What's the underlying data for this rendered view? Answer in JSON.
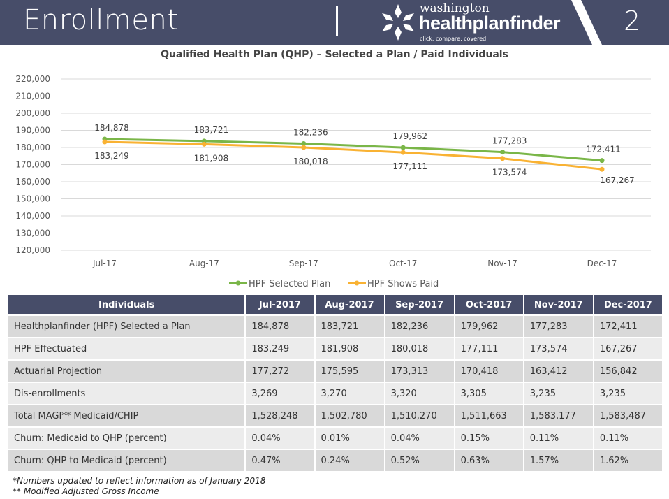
{
  "header": {
    "title": "Enrollment",
    "page_number": "2",
    "logo": {
      "line1": "washington",
      "line2": "healthplanfinder",
      "tagline": "click. compare. covered."
    }
  },
  "chart_data": {
    "type": "line",
    "title": "Qualified Health Plan (QHP) – Selected a Plan / Paid Individuals",
    "categories": [
      "Jul-17",
      "Aug-17",
      "Sep-17",
      "Oct-17",
      "Nov-17",
      "Dec-17"
    ],
    "ylim": [
      120000,
      220000
    ],
    "yticks": [
      "120,000",
      "130,000",
      "140,000",
      "150,000",
      "160,000",
      "170,000",
      "180,000",
      "190,000",
      "200,000",
      "210,000",
      "220,000"
    ],
    "grid": true,
    "legend": "bottom",
    "series": [
      {
        "name": "HPF Selected Plan",
        "color": "#7ab648",
        "values": [
          184878,
          183721,
          182236,
          179962,
          177283,
          172411
        ],
        "labels": [
          "184,878",
          "183,721",
          "182,236",
          "179,962",
          "177,283",
          "172,411"
        ]
      },
      {
        "name": "HPF Shows Paid",
        "color": "#f9b233",
        "values": [
          183249,
          181908,
          180018,
          177111,
          173574,
          167267
        ],
        "labels": [
          "183,249",
          "181,908",
          "180,018",
          "177,111",
          "173,574",
          "167,267"
        ]
      }
    ]
  },
  "table": {
    "headers": [
      "Individuals",
      "Jul-2017",
      "Aug-2017",
      "Sep-2017",
      "Oct-2017",
      "Nov-2017",
      "Dec-2017"
    ],
    "rows": [
      [
        "Healthplanfinder (HPF) Selected a Plan",
        "184,878",
        "183,721",
        "182,236",
        "179,962",
        "177,283",
        "172,411"
      ],
      [
        "HPF Effectuated",
        "183,249",
        "181,908",
        "180,018",
        "177,111",
        "173,574",
        "167,267"
      ],
      [
        "Actuarial Projection",
        "177,272",
        "175,595",
        "173,313",
        "170,418",
        "163,412",
        "156,842"
      ],
      [
        "Dis-enrollments",
        "3,269",
        "3,270",
        "3,320",
        "3,305",
        "3,235",
        "3,235"
      ],
      [
        "Total MAGI** Medicaid/CHIP",
        "1,528,248",
        "1,502,780",
        "1,510,270",
        "1,511,663",
        "1,583,177",
        "1,583,487"
      ],
      [
        "Churn: Medicaid to QHP (percent)",
        "0.04%",
        "0.01%",
        "0.04%",
        "0.15%",
        "0.11%",
        "0.11%"
      ],
      [
        "Churn: QHP to Medicaid (percent)",
        "0.47%",
        "0.24%",
        "0.52%",
        "0.63%",
        "1.57%",
        "1.62%"
      ]
    ]
  },
  "footnotes": [
    "*Numbers updated to reflect information as of January 2018",
    "** Modified Adjusted Gross Income"
  ]
}
